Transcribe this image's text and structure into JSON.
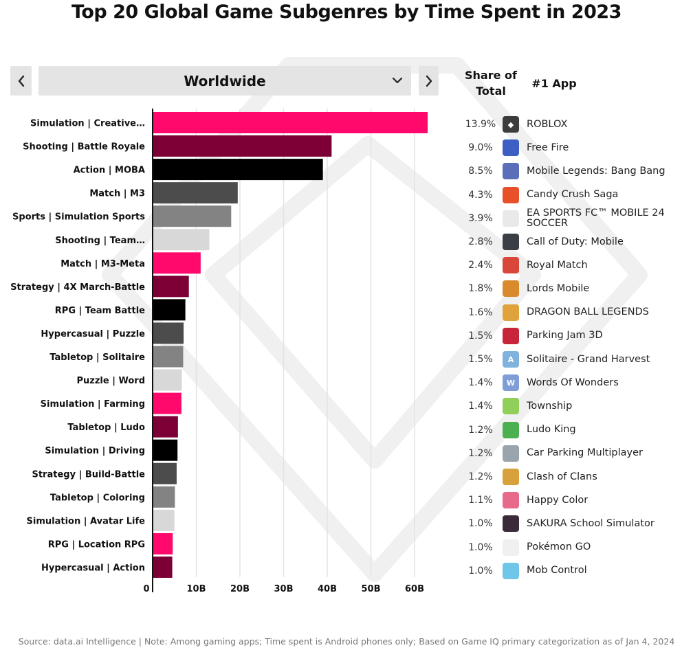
{
  "title": "Top 20 Global Game Subgenres by Time Spent in 2023",
  "region_selector": {
    "selected": "Worldwide"
  },
  "columns": {
    "share_line1": "Share of",
    "share_line2": "Total",
    "app": "#1 App"
  },
  "footer": "Source: data.ai Intelligence  | Note: Among gaming apps; Time spent is Android phones only; Based on Game IQ primary categorization as of Jan 4, 2024",
  "colors": {
    "pink": "#ff0a6c",
    "maroon": "#7c0035",
    "black": "#000000",
    "dark_gray": "#4c4c4c",
    "mid_gray": "#838383",
    "light_gray": "#d8d8d8",
    "nav_bg": "#e4e4e4"
  },
  "chart_data": {
    "type": "bar",
    "orientation": "horizontal",
    "categories": [
      "Simulation | Creative…",
      "Shooting | Battle Royale",
      "Action | MOBA",
      "Match | M3",
      "Sports | Simulation Sports",
      "Shooting | Team…",
      "Match | M3-Meta",
      "Strategy | 4X March-Battle",
      "RPG | Team Battle",
      "Hypercasual | Puzzle",
      "Tabletop | Solitaire",
      "Puzzle | Word",
      "Simulation | Farming",
      "Tabletop | Ludo",
      "Simulation | Driving",
      "Strategy | Build-Battle",
      "Tabletop | Coloring",
      "Simulation | Avatar Life",
      "RPG | Location RPG",
      "Hypercasual | Action"
    ],
    "values": [
      63,
      41,
      39,
      19.5,
      18,
      13,
      11,
      8.3,
      7.5,
      7.1,
      7,
      6.7,
      6.6,
      5.8,
      5.7,
      5.5,
      5.1,
      5,
      4.6,
      4.5
    ],
    "bar_colors": [
      "#ff0a6c",
      "#7c0035",
      "#000000",
      "#4c4c4c",
      "#838383",
      "#d8d8d8",
      "#ff0a6c",
      "#7c0035",
      "#000000",
      "#4c4c4c",
      "#838383",
      "#d8d8d8",
      "#ff0a6c",
      "#7c0035",
      "#000000",
      "#4c4c4c",
      "#838383",
      "#d8d8d8",
      "#ff0a6c",
      "#7c0035"
    ],
    "x_ticks": [
      "0",
      "10B",
      "20B",
      "30B",
      "40B",
      "50B",
      "60B"
    ],
    "xlim": [
      0,
      67
    ],
    "grid": true
  },
  "apps": [
    {
      "share": "13.9%",
      "name": "ROBLOX",
      "icon": "roblox-icon",
      "icon_color": "#3c3c3c",
      "icon_glyph": "◆"
    },
    {
      "share": "9.0%",
      "name": "Free Fire",
      "icon": "free-fire-icon",
      "icon_color": "#3d5fc4",
      "icon_glyph": ""
    },
    {
      "share": "8.5%",
      "name": "Mobile Legends: Bang Bang",
      "icon": "mobile-legends-icon",
      "icon_color": "#5a6fb8",
      "icon_glyph": ""
    },
    {
      "share": "4.3%",
      "name": "Candy Crush Saga",
      "icon": "candy-crush-icon",
      "icon_color": "#e8502a",
      "icon_glyph": ""
    },
    {
      "share": "3.9%",
      "name": "EA SPORTS FC™ MOBILE 24 SOCCER",
      "icon": "ea-sports-fc-icon",
      "icon_color": "#e9e9e9",
      "icon_glyph": ""
    },
    {
      "share": "2.8%",
      "name": "Call of Duty: Mobile",
      "icon": "call-of-duty-icon",
      "icon_color": "#3a3f46",
      "icon_glyph": ""
    },
    {
      "share": "2.4%",
      "name": "Royal Match",
      "icon": "royal-match-icon",
      "icon_color": "#d9473a",
      "icon_glyph": ""
    },
    {
      "share": "1.8%",
      "name": "Lords Mobile",
      "icon": "lords-mobile-icon",
      "icon_color": "#d88a2c",
      "icon_glyph": ""
    },
    {
      "share": "1.6%",
      "name": "DRAGON BALL LEGENDS",
      "icon": "dragon-ball-legends-icon",
      "icon_color": "#e0a23a",
      "icon_glyph": ""
    },
    {
      "share": "1.5%",
      "name": "Parking Jam 3D",
      "icon": "parking-jam-icon",
      "icon_color": "#c8243a",
      "icon_glyph": ""
    },
    {
      "share": "1.5%",
      "name": "Solitaire - Grand Harvest",
      "icon": "solitaire-grand-harvest-icon",
      "icon_color": "#7fb3de",
      "icon_glyph": "A"
    },
    {
      "share": "1.4%",
      "name": "Words Of Wonders",
      "icon": "words-of-wonders-icon",
      "icon_color": "#7f9ed6",
      "icon_glyph": "W"
    },
    {
      "share": "1.4%",
      "name": "Township",
      "icon": "township-icon",
      "icon_color": "#8fcf5a",
      "icon_glyph": ""
    },
    {
      "share": "1.2%",
      "name": "Ludo King",
      "icon": "ludo-king-icon",
      "icon_color": "#4caf50",
      "icon_glyph": ""
    },
    {
      "share": "1.2%",
      "name": "Car Parking Multiplayer",
      "icon": "car-parking-multiplayer-icon",
      "icon_color": "#9aa4ad",
      "icon_glyph": ""
    },
    {
      "share": "1.2%",
      "name": "Clash of Clans",
      "icon": "clash-of-clans-icon",
      "icon_color": "#d7a13b",
      "icon_glyph": ""
    },
    {
      "share": "1.1%",
      "name": "Happy Color",
      "icon": "happy-color-icon",
      "icon_color": "#e86a8a",
      "icon_glyph": ""
    },
    {
      "share": "1.0%",
      "name": "SAKURA School Simulator",
      "icon": "sakura-school-icon",
      "icon_color": "#3b2a3a",
      "icon_glyph": ""
    },
    {
      "share": "1.0%",
      "name": "Pokémon GO",
      "icon": "pokemon-go-icon",
      "icon_color": "#f0f0f0",
      "icon_glyph": ""
    },
    {
      "share": "1.0%",
      "name": "Mob Control",
      "icon": "mob-control-icon",
      "icon_color": "#6fc6e8",
      "icon_glyph": ""
    }
  ]
}
